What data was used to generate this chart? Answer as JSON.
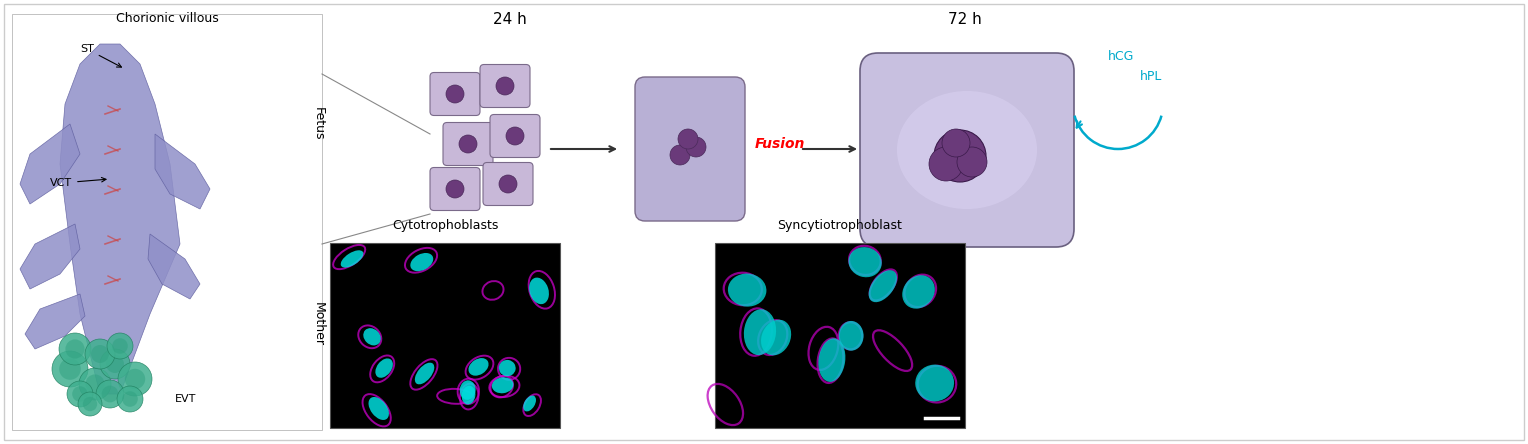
{
  "bg_color": "#ffffff",
  "border_color": "#cccccc",
  "chorionic_villous_label": "Chorionic villous",
  "fetus_label": "Fetus",
  "mother_label": "Mother",
  "st_label": "ST",
  "vct_label": "VCT",
  "evt_label": "EVT",
  "h24_label": "24 h",
  "h72_label": "72 h",
  "fusion_label": "Fusion",
  "fusion_color": "#ff0000",
  "hcg_label": "hCG",
  "hpl_label": "hPL",
  "hormone_color": "#00aacc",
  "cyto_label": "Cytotrophoblasts",
  "syncytio_label": "Syncytiotrophoblast",
  "cell_fill": "#c8b8d8",
  "cell_outline": "#7a6a8a",
  "nucleus_fill": "#6a3a7a",
  "large_cell_fill": "#c8c0e0",
  "large_cell_outline": "#6a6080",
  "arrow_color": "#333333",
  "label_fontsize": 9,
  "small_fontsize": 8
}
